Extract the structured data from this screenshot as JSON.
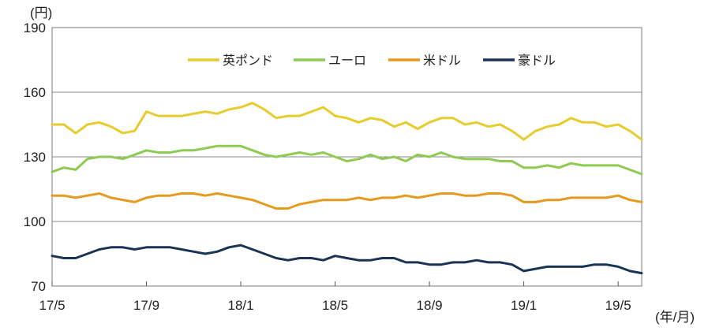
{
  "chart_data": {
    "type": "line",
    "y_unit": "(円)",
    "x_unit": "(年/月)",
    "ylim": [
      70,
      190
    ],
    "yticks": [
      70,
      100,
      130,
      160,
      190
    ],
    "grid": "horizontal",
    "legend_placement": "top-center",
    "x_tick_labels": [
      "17/5",
      "17/9",
      "18/1",
      "18/5",
      "18/9",
      "19/1",
      "19/5"
    ],
    "x_tick_months": [
      0,
      4,
      8,
      12,
      16,
      20,
      24
    ],
    "x_end_month": 25.0,
    "series": [
      {
        "name": "英ポンド",
        "color": "#e6cc2e",
        "x": [
          0,
          0.5,
          1,
          1.5,
          2,
          2.5,
          3,
          3.5,
          4,
          4.5,
          5,
          5.5,
          6,
          6.5,
          7,
          7.5,
          8,
          8.5,
          9,
          9.5,
          10,
          10.5,
          11,
          11.5,
          12,
          12.5,
          13,
          13.5,
          14,
          14.5,
          15,
          15.5,
          16,
          16.5,
          17,
          17.5,
          18,
          18.5,
          19,
          19.5,
          20,
          20.5,
          21,
          21.5,
          22,
          22.5,
          23,
          23.5,
          24,
          24.5,
          25
        ],
        "y": [
          145,
          145,
          141,
          145,
          146,
          144,
          141,
          142,
          151,
          149,
          149,
          149,
          150,
          151,
          150,
          152,
          153,
          155,
          152,
          148,
          149,
          149,
          151,
          153,
          149,
          148,
          146,
          148,
          147,
          144,
          146,
          143,
          146,
          148,
          148,
          145,
          146,
          144,
          145,
          142,
          138,
          142,
          144,
          145,
          148,
          146,
          146,
          144,
          145,
          142,
          138
        ]
      },
      {
        "name": "ユーロ",
        "color": "#8fca52",
        "x": [
          0,
          0.5,
          1,
          1.5,
          2,
          2.5,
          3,
          3.5,
          4,
          4.5,
          5,
          5.5,
          6,
          6.5,
          7,
          7.5,
          8,
          8.5,
          9,
          9.5,
          10,
          10.5,
          11,
          11.5,
          12,
          12.5,
          13,
          13.5,
          14,
          14.5,
          15,
          15.5,
          16,
          16.5,
          17,
          17.5,
          18,
          18.5,
          19,
          19.5,
          20,
          20.5,
          21,
          21.5,
          22,
          22.5,
          23,
          23.5,
          24,
          24.5,
          25
        ],
        "y": [
          123,
          125,
          124,
          129,
          130,
          130,
          129,
          131,
          133,
          132,
          132,
          133,
          133,
          134,
          135,
          135,
          135,
          133,
          131,
          130,
          131,
          132,
          131,
          132,
          130,
          128,
          129,
          131,
          129,
          130,
          128,
          131,
          130,
          132,
          130,
          129,
          129,
          129,
          128,
          128,
          125,
          125,
          126,
          125,
          127,
          126,
          126,
          126,
          126,
          124,
          122
        ]
      },
      {
        "name": "米ドル",
        "color": "#e59a1e",
        "x": [
          0,
          0.5,
          1,
          1.5,
          2,
          2.5,
          3,
          3.5,
          4,
          4.5,
          5,
          5.5,
          6,
          6.5,
          7,
          7.5,
          8,
          8.5,
          9,
          9.5,
          10,
          10.5,
          11,
          11.5,
          12,
          12.5,
          13,
          13.5,
          14,
          14.5,
          15,
          15.5,
          16,
          16.5,
          17,
          17.5,
          18,
          18.5,
          19,
          19.5,
          20,
          20.5,
          21,
          21.5,
          22,
          22.5,
          23,
          23.5,
          24,
          24.5,
          25
        ],
        "y": [
          112,
          112,
          111,
          112,
          113,
          111,
          110,
          109,
          111,
          112,
          112,
          113,
          113,
          112,
          113,
          112,
          111,
          110,
          108,
          106,
          106,
          108,
          109,
          110,
          110,
          110,
          111,
          110,
          111,
          111,
          112,
          111,
          112,
          113,
          113,
          112,
          112,
          113,
          113,
          112,
          109,
          109,
          110,
          110,
          111,
          111,
          111,
          111,
          112,
          110,
          109
        ]
      },
      {
        "name": "豪ドル",
        "color": "#1c3454",
        "x": [
          0,
          0.5,
          1,
          1.5,
          2,
          2.5,
          3,
          3.5,
          4,
          4.5,
          5,
          5.5,
          6,
          6.5,
          7,
          7.5,
          8,
          8.5,
          9,
          9.5,
          10,
          10.5,
          11,
          11.5,
          12,
          12.5,
          13,
          13.5,
          14,
          14.5,
          15,
          15.5,
          16,
          16.5,
          17,
          17.5,
          18,
          18.5,
          19,
          19.5,
          20,
          20.5,
          21,
          21.5,
          22,
          22.5,
          23,
          23.5,
          24,
          24.5,
          25
        ],
        "y": [
          84,
          83,
          83,
          85,
          87,
          88,
          88,
          87,
          88,
          88,
          88,
          87,
          86,
          85,
          86,
          88,
          89,
          87,
          85,
          83,
          82,
          83,
          83,
          82,
          84,
          83,
          82,
          82,
          83,
          83,
          81,
          81,
          80,
          80,
          81,
          81,
          82,
          81,
          81,
          80,
          77,
          78,
          79,
          79,
          79,
          79,
          80,
          80,
          79,
          77,
          76
        ]
      }
    ]
  }
}
